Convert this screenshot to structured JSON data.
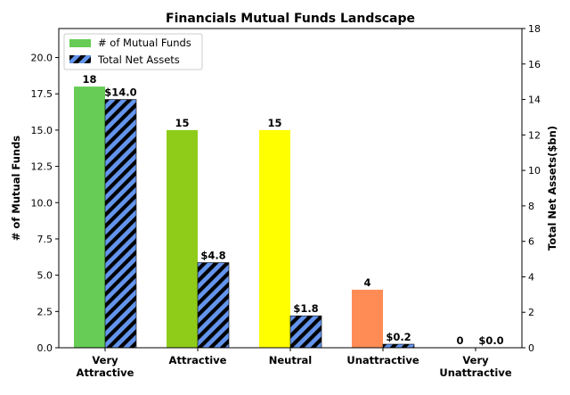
{
  "chart_data": {
    "type": "bar",
    "title": "Financials Mutual Funds Landscape",
    "categories": [
      [
        "Very",
        "Attractive"
      ],
      [
        "Attractive"
      ],
      [
        "Neutral"
      ],
      [
        "Unattractive"
      ],
      [
        "Very",
        "Unattractive"
      ]
    ],
    "y_left": {
      "label": "# of Mutual Funds",
      "lim": [
        0,
        22
      ],
      "ticks": [
        "0.0",
        "2.5",
        "5.0",
        "7.5",
        "10.0",
        "12.5",
        "15.0",
        "17.5",
        "20.0"
      ],
      "tick_values": [
        0,
        2.5,
        5,
        7.5,
        10,
        12.5,
        15,
        17.5,
        20
      ]
    },
    "y_right": {
      "label": "Total Net Assets($bn)",
      "lim": [
        0,
        18
      ],
      "ticks": [
        "0",
        "2",
        "4",
        "6",
        "8",
        "10",
        "12",
        "14",
        "16",
        "18"
      ],
      "tick_values": [
        0,
        2,
        4,
        6,
        8,
        10,
        12,
        14,
        16,
        18
      ]
    },
    "series": [
      {
        "name": "# of Mutual Funds",
        "axis": "left",
        "values": [
          18,
          15,
          15,
          4,
          0
        ],
        "labels": [
          "18",
          "15",
          "15",
          "4",
          "0"
        ],
        "colors": [
          "#66cc55",
          "#8fcc1a",
          "#ffff00",
          "#ff8c55",
          "#bbbbbb"
        ],
        "legend_color": "#66cc55"
      },
      {
        "name": "Total Net Assets",
        "axis": "right",
        "values": [
          14.0,
          4.8,
          1.8,
          0.2,
          0.0
        ],
        "labels": [
          "$14.0",
          "$4.8",
          "$1.8",
          "$0.2",
          "$0.0"
        ],
        "color": "#6495ed",
        "hatch_color": "#000000"
      }
    ],
    "legend": "top-left",
    "grid": false
  }
}
